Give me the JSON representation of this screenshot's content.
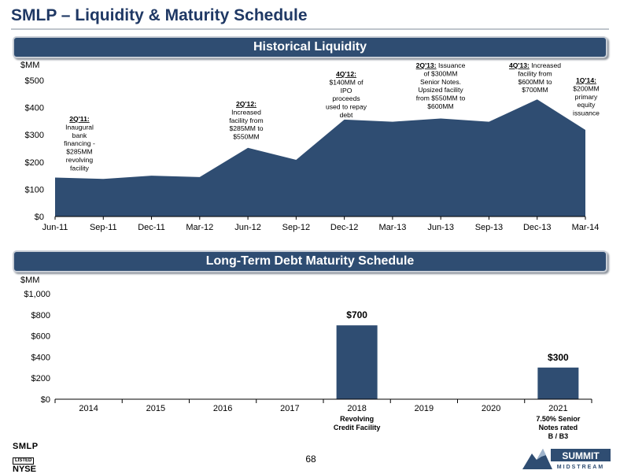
{
  "page": {
    "title": "SMLP – Liquidity & Maturity Schedule",
    "page_number": "68",
    "footer_left": {
      "line1": "SMLP",
      "line2": "LISTED",
      "line3": "NYSE"
    },
    "footer_right": {
      "line1": "SUMMIT",
      "line2": "MIDSTREAM"
    },
    "colors": {
      "navy": "#2f4d72",
      "title": "#1f3864"
    }
  },
  "liquidity": {
    "banner": "Historical Liquidity",
    "unit_label": "$MM",
    "annotations": [
      {
        "lines": [
          "2Q'11:",
          "Inaugural",
          "bank",
          "financing -",
          "$285MM",
          "revolving",
          "facility"
        ]
      },
      {
        "lines": [
          "2Q'12:",
          "Increased",
          "facility from",
          "$285MM to",
          "$550MM"
        ]
      },
      {
        "lines": [
          "4Q'12:",
          "$140MM of",
          "IPO",
          "proceeds",
          "used to repay",
          "debt"
        ]
      },
      {
        "lines": [
          "2Q'13:  Issuance",
          "of $300MM",
          "Senior Notes.",
          "Upsized facility",
          "from $550MM to",
          "$600MM"
        ]
      },
      {
        "lines": [
          "4Q'13:  Increased",
          "facility from",
          "$600MM to",
          "$700MM"
        ]
      },
      {
        "lines": [
          "1Q'14:",
          "$200MM",
          "primary",
          "equity",
          "issuance"
        ]
      }
    ]
  },
  "maturity": {
    "banner": "Long-Term Debt Maturity Schedule",
    "unit_label": "$MM",
    "bar_notes": [
      {
        "lines": [
          "Revolving",
          "Credit Facility"
        ]
      },
      {
        "lines": [
          "7.50% Senior",
          "Notes rated",
          "B / B3"
        ]
      }
    ]
  },
  "chart_data": [
    {
      "type": "area",
      "title": "Historical Liquidity",
      "ylabel": "$MM",
      "categories": [
        "Jun-11",
        "Sep-11",
        "Dec-11",
        "Mar-12",
        "Jun-12",
        "Sep-12",
        "Dec-12",
        "Mar-13",
        "Jun-13",
        "Sep-13",
        "Dec-13",
        "Mar-14"
      ],
      "values": [
        143,
        138,
        150,
        145,
        252,
        208,
        356,
        348,
        360,
        348,
        430,
        318
      ],
      "yticks": [
        "$0",
        "$100",
        "$200",
        "$300",
        "$400",
        "$500"
      ],
      "ylim": [
        0,
        500
      ],
      "grid": false,
      "color": "#2f4d72"
    },
    {
      "type": "bar",
      "title": "Long-Term Debt Maturity Schedule",
      "ylabel": "$MM",
      "categories": [
        "2014",
        "2015",
        "2016",
        "2017",
        "2018",
        "2019",
        "2020",
        "2021"
      ],
      "values": [
        0,
        0,
        0,
        0,
        700,
        0,
        0,
        300
      ],
      "data_labels": [
        "",
        "",
        "",
        "",
        "$700",
        "",
        "",
        "$300"
      ],
      "yticks": [
        "$0",
        "$200",
        "$400",
        "$600",
        "$800",
        "$1,000"
      ],
      "ylim": [
        0,
        1000
      ],
      "grid": false,
      "color": "#2f4d72"
    }
  ]
}
